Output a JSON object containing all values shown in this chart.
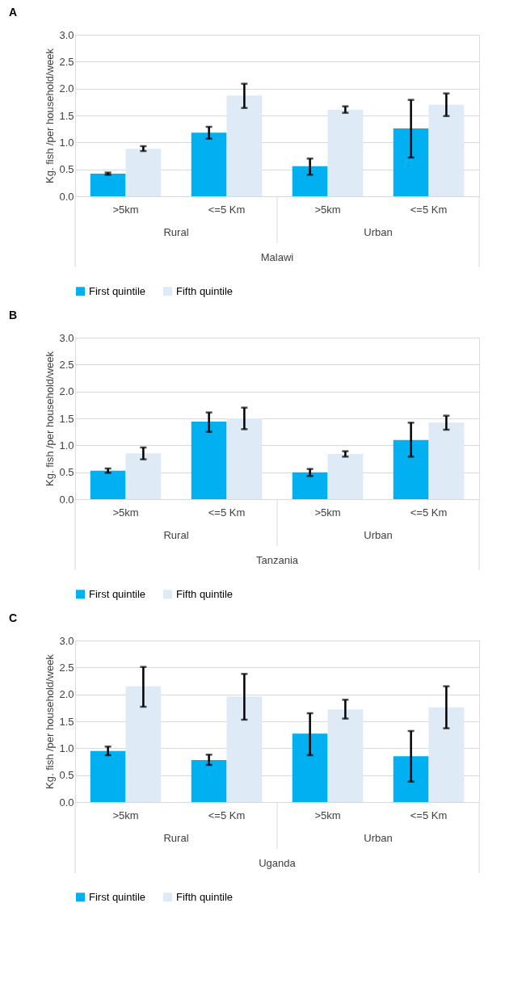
{
  "chart_data": [
    {
      "type": "bar",
      "title": "A",
      "ylabel": "Kg. fish /per household/week",
      "categories": [
        ">5km",
        "<=5 Km",
        ">5km",
        "<=5 Km"
      ],
      "annotations": [
        "Rural",
        "Urban",
        "Malawi"
      ],
      "ylim": [
        0,
        3.0
      ],
      "yticks": [
        {
          "value": 0,
          "label": "0.0"
        },
        0.5,
        {
          "value": 1,
          "label": "1.0"
        },
        1.5,
        {
          "value": 2,
          "label": "2.0"
        },
        2.5,
        {
          "value": 3,
          "label": "3.0"
        }
      ],
      "grid": "y",
      "legend": "bottom",
      "series": [
        {
          "name": "First quintile",
          "color": "#00b0f0",
          "values": [
            0.42,
            1.18,
            0.56,
            1.26
          ],
          "errors": [
            [
              0.4,
              0.44
            ],
            [
              1.07,
              1.29
            ],
            [
              0.4,
              0.7
            ],
            [
              0.72,
              1.79
            ]
          ]
        },
        {
          "name": "Fifth quintile",
          "color": "#deebf7",
          "values": [
            0.88,
            1.87,
            1.61,
            1.7
          ],
          "errors": [
            [
              0.84,
              0.93
            ],
            [
              1.64,
              2.09
            ],
            [
              1.55,
              1.67
            ],
            [
              1.49,
              1.91
            ]
          ]
        }
      ]
    },
    {
      "type": "bar",
      "title": "B",
      "ylabel": "Kg. fish /per household/week",
      "categories": [
        ">5km",
        "<=5 Km",
        ">5km",
        "<=5 Km"
      ],
      "annotations": [
        "Rural",
        "Urban",
        "Tanzania"
      ],
      "ylim": [
        0,
        3.0
      ],
      "yticks": [
        {
          "value": 0,
          "label": "0.0"
        },
        0.5,
        {
          "value": 1,
          "label": "1.0"
        },
        1.5,
        {
          "value": 2,
          "label": "2.0"
        },
        2.5,
        {
          "value": 3,
          "label": "3.0"
        }
      ],
      "grid": "y",
      "legend": "bottom",
      "series": [
        {
          "name": "First quintile",
          "color": "#00b0f0",
          "values": [
            0.53,
            1.44,
            0.5,
            1.1
          ],
          "errors": [
            [
              0.49,
              0.57
            ],
            [
              1.25,
              1.61
            ],
            [
              0.43,
              0.56
            ],
            [
              0.79,
              1.42
            ]
          ]
        },
        {
          "name": "Fifth quintile",
          "color": "#deebf7",
          "values": [
            0.85,
            1.5,
            0.84,
            1.42
          ],
          "errors": [
            [
              0.74,
              0.96
            ],
            [
              1.3,
              1.7
            ],
            [
              0.79,
              0.89
            ],
            [
              1.29,
              1.55
            ]
          ]
        }
      ]
    },
    {
      "type": "bar",
      "title": "C",
      "ylabel": "Kg. fish /per household/week",
      "categories": [
        ">5km",
        "<=5 Km",
        ">5km",
        "<=5 Km"
      ],
      "annotations": [
        "Rural",
        "Urban",
        "Uganda"
      ],
      "ylim": [
        0,
        3.0
      ],
      "yticks": [
        {
          "value": 0,
          "label": "0.0"
        },
        0.5,
        {
          "value": 1,
          "label": "1.0"
        },
        1.5,
        {
          "value": 2,
          "label": "2.0"
        },
        2.5,
        {
          "value": 3,
          "label": "3.0"
        }
      ],
      "grid": "y",
      "legend": "bottom",
      "series": [
        {
          "name": "First quintile",
          "color": "#00b0f0",
          "values": [
            0.95,
            0.78,
            1.27,
            0.85
          ],
          "errors": [
            [
              0.87,
              1.03
            ],
            [
              0.69,
              0.88
            ],
            [
              0.87,
              1.65
            ],
            [
              0.38,
              1.32
            ]
          ]
        },
        {
          "name": "Fifth quintile",
          "color": "#deebf7",
          "values": [
            2.15,
            1.96,
            1.72,
            1.76
          ],
          "errors": [
            [
              1.77,
              2.51
            ],
            [
              1.53,
              2.38
            ],
            [
              1.55,
              1.9
            ],
            [
              1.37,
              2.15
            ]
          ]
        }
      ]
    }
  ]
}
